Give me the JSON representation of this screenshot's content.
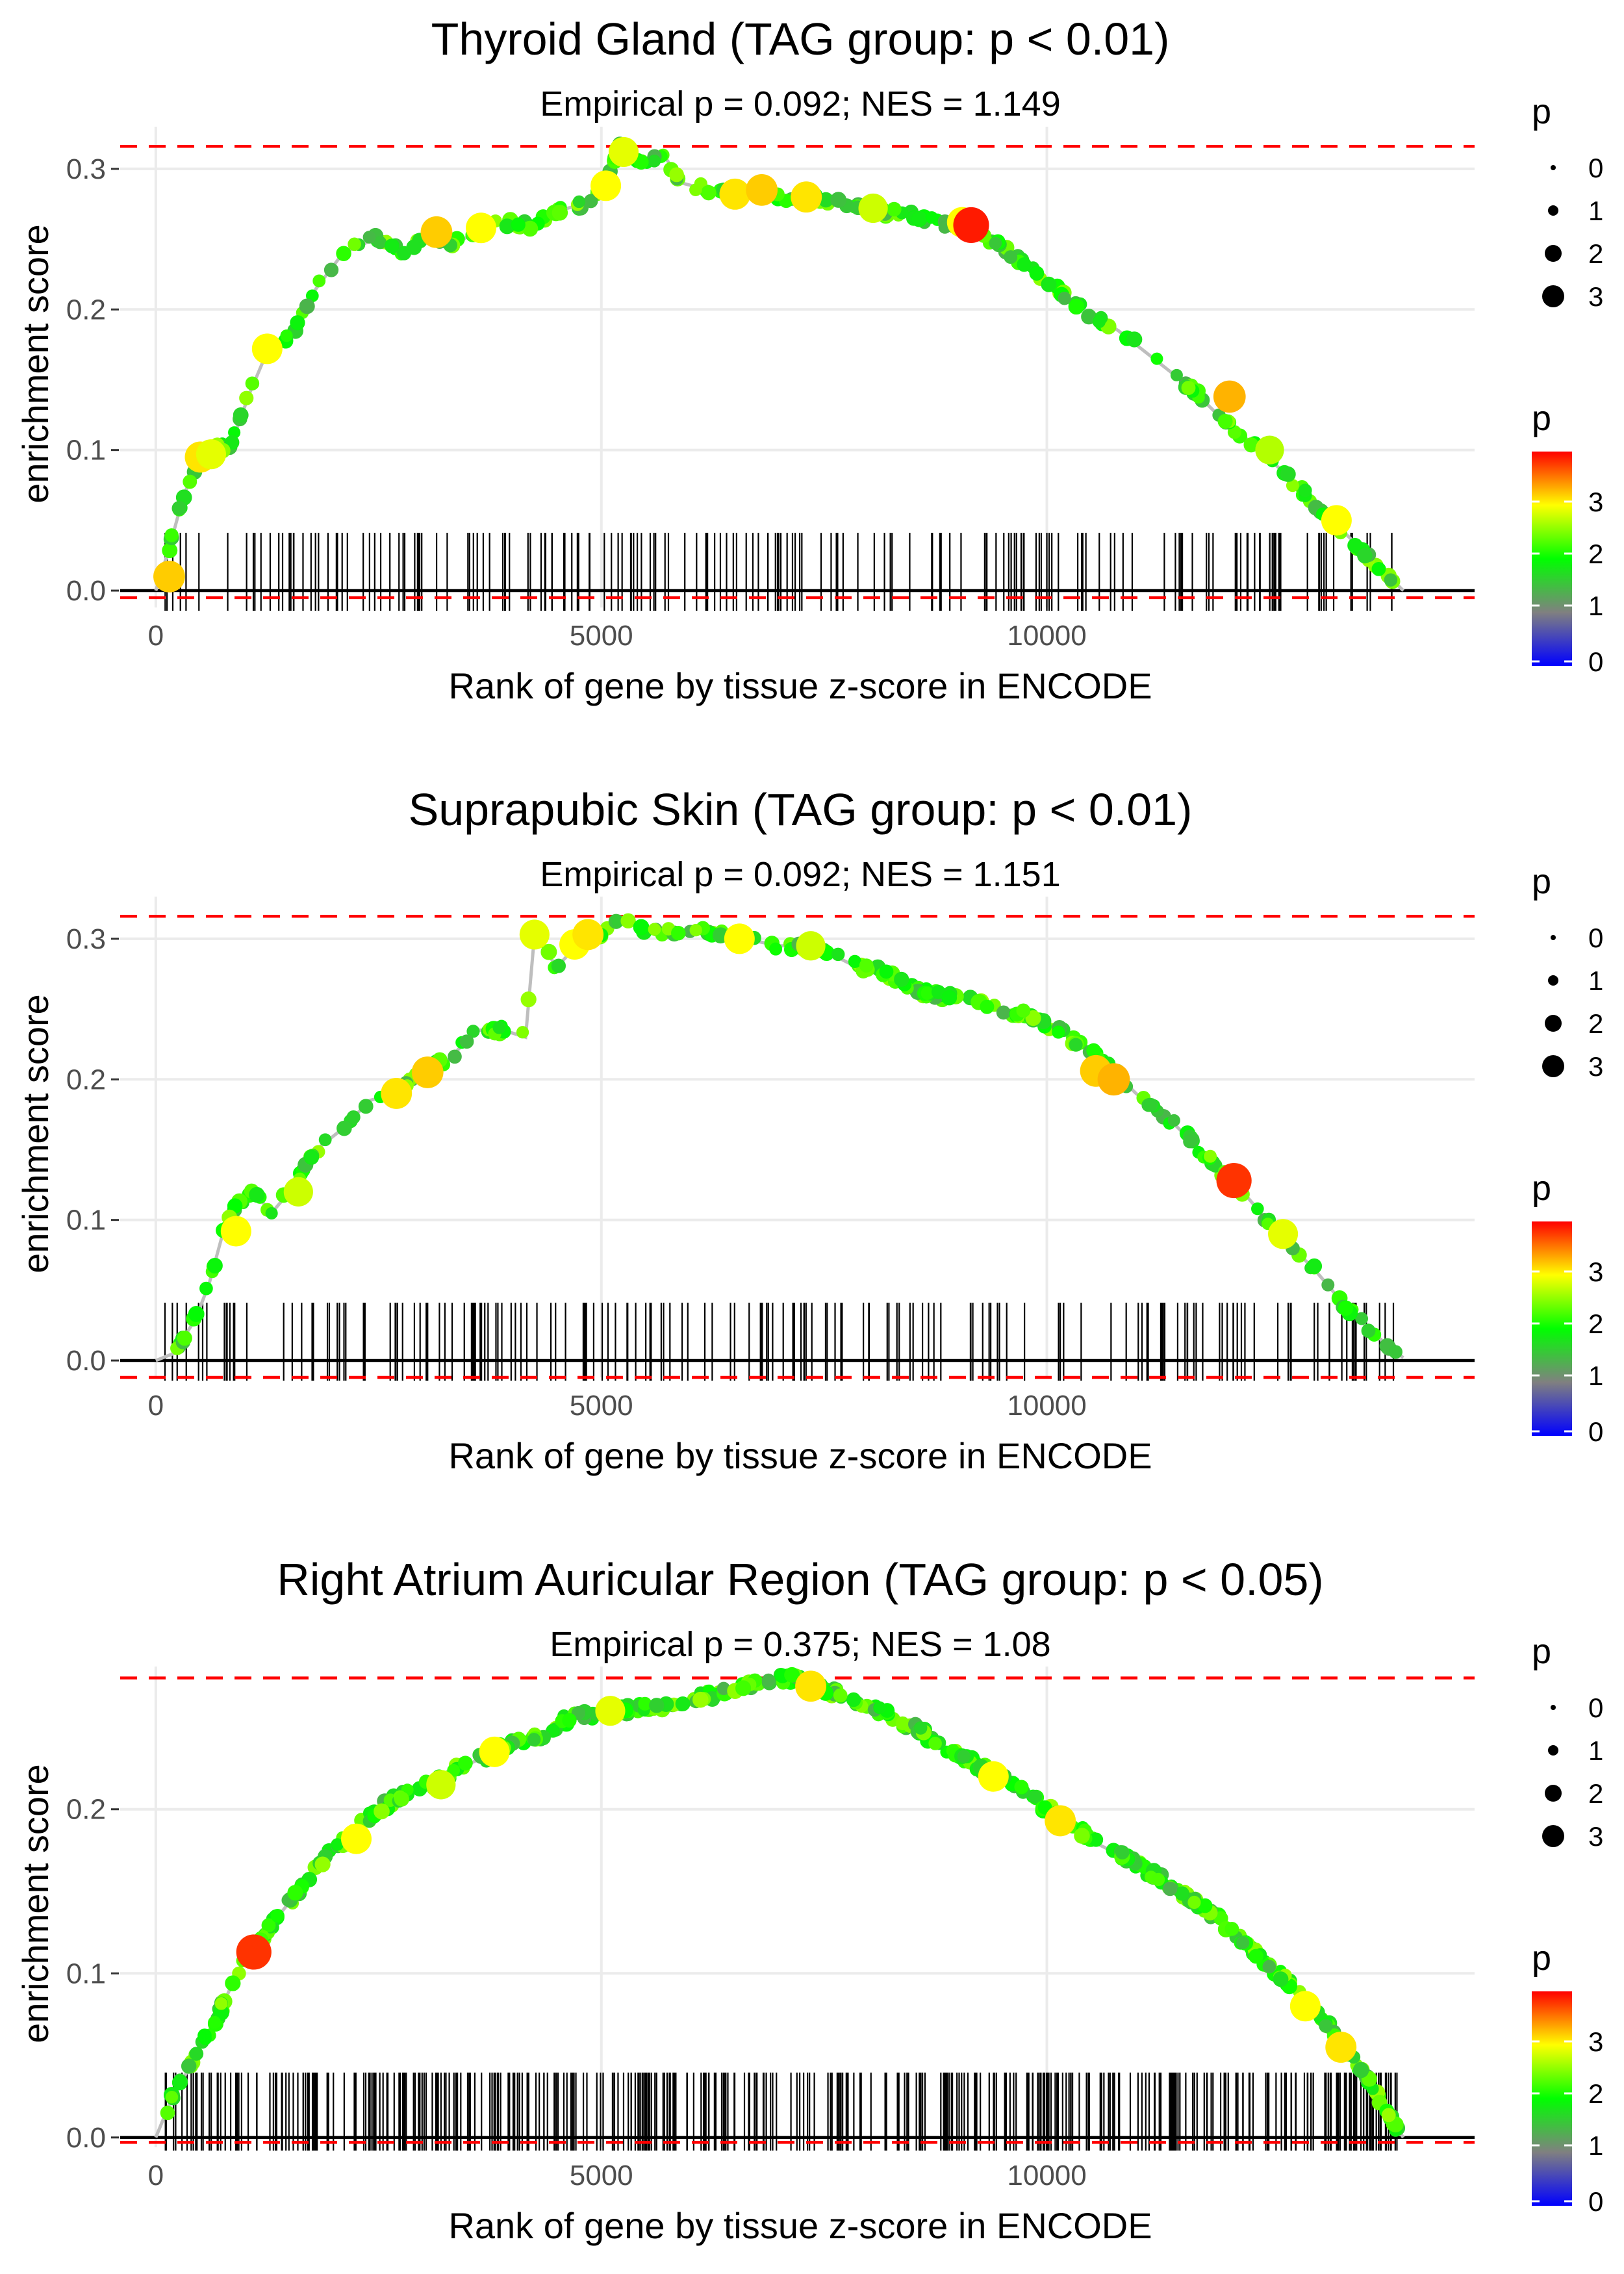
{
  "figure": {
    "x_axis_label": "Rank of gene by tissue z-score in ENCODE",
    "y_axis_label": "enrichment score",
    "size_legend": {
      "title": "p",
      "labels": [
        "0",
        "1",
        "2",
        "3"
      ]
    },
    "color_legend": {
      "title": "p",
      "labels": [
        "0",
        "1",
        "2",
        "3"
      ],
      "gradient": [
        "#0000ff",
        "#808080",
        "#00ff00",
        "#ffff00",
        "#ff0000"
      ]
    },
    "colors": {
      "curve": "#bebebe",
      "threshold_line": "#ff0000",
      "baseline": "#000000",
      "grid": "#ebebeb"
    }
  },
  "chart_data": [
    {
      "type": "line",
      "title": "Thyroid Gland (TAG group: p < 0.01)",
      "subtitle": "Empirical p = 0.092; NES = 1.149",
      "xlabel": "Rank of gene by tissue z-score in ENCODE",
      "ylabel": "enrichment score",
      "xlim": [
        -400,
        14800
      ],
      "ylim": [
        -0.012,
        0.33
      ],
      "x_ticks": [
        0,
        5000,
        10000
      ],
      "x_tick_labels": [
        "0",
        "5000",
        "10000"
      ],
      "y_ticks": [
        0.0,
        0.1,
        0.2,
        0.3
      ],
      "y_tick_labels": [
        "0.0",
        "0.1",
        "0.2",
        "0.3"
      ],
      "max_es": 0.316,
      "min_es": -0.005,
      "running_es": {
        "x": [
          0,
          150,
          300,
          450,
          650,
          850,
          1050,
          1250,
          1500,
          1800,
          2100,
          2450,
          2800,
          3050,
          3300,
          3600,
          3900,
          4200,
          4500,
          4800,
          5050,
          5200,
          5450,
          5700,
          5900,
          6200,
          6500,
          6800,
          7200,
          7600,
          8000,
          8400,
          8800,
          9200,
          9600,
          10000,
          10400,
          10800,
          11200,
          11600,
          12000,
          12400,
          12800,
          13200,
          13600,
          14000
        ],
        "y": [
          0.0,
          0.03,
          0.065,
          0.09,
          0.1,
          0.105,
          0.14,
          0.17,
          0.18,
          0.215,
          0.24,
          0.25,
          0.24,
          0.258,
          0.245,
          0.255,
          0.262,
          0.26,
          0.27,
          0.275,
          0.29,
          0.316,
          0.305,
          0.31,
          0.29,
          0.285,
          0.283,
          0.28,
          0.28,
          0.278,
          0.27,
          0.268,
          0.262,
          0.255,
          0.24,
          0.22,
          0.2,
          0.185,
          0.165,
          0.145,
          0.12,
          0.1,
          0.075,
          0.05,
          0.025,
          0.0
        ]
      },
      "highlighted_genes": [
        {
          "x": 150,
          "es": 0.01,
          "p": 3.2
        },
        {
          "x": 500,
          "es": 0.095,
          "p": 3.1
        },
        {
          "x": 620,
          "es": 0.097,
          "p": 2.9
        },
        {
          "x": 1250,
          "es": 0.172,
          "p": 3.0
        },
        {
          "x": 3150,
          "es": 0.255,
          "p": 3.2
        },
        {
          "x": 3650,
          "es": 0.258,
          "p": 3.0
        },
        {
          "x": 5050,
          "es": 0.288,
          "p": 3.0
        },
        {
          "x": 5250,
          "es": 0.312,
          "p": 2.9
        },
        {
          "x": 6500,
          "es": 0.282,
          "p": 3.1
        },
        {
          "x": 6800,
          "es": 0.285,
          "p": 3.2
        },
        {
          "x": 7300,
          "es": 0.28,
          "p": 3.1
        },
        {
          "x": 8050,
          "es": 0.272,
          "p": 2.8
        },
        {
          "x": 9050,
          "es": 0.262,
          "p": 3.0
        },
        {
          "x": 9150,
          "es": 0.26,
          "p": 3.9
        },
        {
          "x": 12050,
          "es": 0.138,
          "p": 3.3
        },
        {
          "x": 12500,
          "es": 0.1,
          "p": 2.7
        },
        {
          "x": 13250,
          "es": 0.05,
          "p": 3.0
        }
      ]
    },
    {
      "type": "line",
      "title": "Suprapubic Skin (TAG group: p < 0.01)",
      "subtitle": "Empirical p = 0.092; NES = 1.151",
      "xlabel": "Rank of gene by tissue z-score in ENCODE",
      "ylabel": "enrichment score",
      "xlim": [
        -400,
        14800
      ],
      "ylim": [
        -0.012,
        0.33
      ],
      "x_ticks": [
        0,
        5000,
        10000
      ],
      "x_tick_labels": [
        "0",
        "5000",
        "10000"
      ],
      "y_ticks": [
        0.0,
        0.1,
        0.2,
        0.3
      ],
      "y_tick_labels": [
        "0.0",
        "0.1",
        "0.2",
        "0.3"
      ],
      "max_es": 0.316,
      "min_es": -0.012,
      "running_es": {
        "x": [
          0,
          200,
          450,
          600,
          750,
          900,
          1100,
          1300,
          1500,
          1800,
          2100,
          2400,
          2700,
          3000,
          3300,
          3600,
          3900,
          4150,
          4250,
          4500,
          4800,
          5000,
          5200,
          5500,
          5800,
          6200,
          6600,
          7000,
          7400,
          7800,
          8200,
          8600,
          9000,
          9400,
          9800,
          10200,
          10600,
          11000,
          11400,
          11800,
          12200,
          12600,
          13000,
          13400,
          13800,
          14000
        ],
        "y": [
          0.0,
          0.005,
          0.03,
          0.055,
          0.09,
          0.11,
          0.12,
          0.105,
          0.12,
          0.15,
          0.165,
          0.185,
          0.19,
          0.205,
          0.215,
          0.235,
          0.235,
          0.23,
          0.303,
          0.28,
          0.3,
          0.305,
          0.316,
          0.305,
          0.305,
          0.305,
          0.3,
          0.295,
          0.295,
          0.282,
          0.275,
          0.262,
          0.258,
          0.252,
          0.245,
          0.232,
          0.215,
          0.19,
          0.17,
          0.145,
          0.12,
          0.09,
          0.065,
          0.035,
          0.012,
          0.002
        ]
      },
      "highlighted_genes": [
        {
          "x": 900,
          "es": 0.092,
          "p": 3.0
        },
        {
          "x": 1600,
          "es": 0.12,
          "p": 2.8
        },
        {
          "x": 2700,
          "es": 0.19,
          "p": 3.1
        },
        {
          "x": 3050,
          "es": 0.205,
          "p": 3.2
        },
        {
          "x": 4250,
          "es": 0.303,
          "p": 2.9
        },
        {
          "x": 4700,
          "es": 0.296,
          "p": 3.0
        },
        {
          "x": 4850,
          "es": 0.303,
          "p": 3.1
        },
        {
          "x": 6550,
          "es": 0.3,
          "p": 3.0
        },
        {
          "x": 7350,
          "es": 0.295,
          "p": 2.8
        },
        {
          "x": 10550,
          "es": 0.206,
          "p": 3.2
        },
        {
          "x": 10750,
          "es": 0.2,
          "p": 3.3
        },
        {
          "x": 12100,
          "es": 0.128,
          "p": 3.8
        },
        {
          "x": 12650,
          "es": 0.09,
          "p": 2.9
        }
      ]
    },
    {
      "type": "line",
      "title": "Right Atrium Auricular Region (TAG group: p < 0.05)",
      "subtitle": "Empirical p = 0.375; NES = 1.08",
      "xlabel": "Rank of gene by tissue z-score in ENCODE",
      "ylabel": "enrichment score",
      "xlim": [
        -400,
        14800
      ],
      "ylim": [
        -0.006,
        0.287
      ],
      "x_ticks": [
        0,
        5000,
        10000
      ],
      "x_tick_labels": [
        "0",
        "5000",
        "10000"
      ],
      "y_ticks": [
        0.0,
        0.1,
        0.2
      ],
      "y_tick_labels": [
        "0.0",
        "0.1",
        "0.2"
      ],
      "max_es": 0.28,
      "min_es": -0.003,
      "running_es": {
        "x": [
          0,
          150,
          400,
          700,
          1000,
          1300,
          1600,
          1900,
          2200,
          2500,
          2800,
          3100,
          3400,
          3700,
          4000,
          4300,
          4600,
          4900,
          5200,
          5500,
          5800,
          6100,
          6400,
          6700,
          7000,
          7300,
          7600,
          7900,
          8200,
          8500,
          8800,
          9100,
          9400,
          9700,
          10000,
          10300,
          10600,
          10900,
          11200,
          11500,
          11800,
          12100,
          12400,
          12700,
          13000,
          13300,
          13600,
          13850,
          14000
        ],
        "y": [
          0.0,
          0.02,
          0.045,
          0.075,
          0.11,
          0.13,
          0.15,
          0.17,
          0.185,
          0.2,
          0.21,
          0.215,
          0.225,
          0.232,
          0.24,
          0.245,
          0.255,
          0.258,
          0.26,
          0.262,
          0.265,
          0.268,
          0.272,
          0.276,
          0.28,
          0.278,
          0.272,
          0.265,
          0.258,
          0.25,
          0.24,
          0.23,
          0.222,
          0.212,
          0.2,
          0.19,
          0.178,
          0.17,
          0.16,
          0.15,
          0.138,
          0.125,
          0.11,
          0.095,
          0.078,
          0.058,
          0.035,
          0.012,
          0.0
        ]
      },
      "highlighted_genes": [
        {
          "x": 1100,
          "es": 0.113,
          "p": 3.8
        },
        {
          "x": 2250,
          "es": 0.182,
          "p": 3.0
        },
        {
          "x": 3200,
          "es": 0.215,
          "p": 2.8
        },
        {
          "x": 3800,
          "es": 0.235,
          "p": 3.0
        },
        {
          "x": 5100,
          "es": 0.26,
          "p": 2.9
        },
        {
          "x": 7350,
          "es": 0.275,
          "p": 3.1
        },
        {
          "x": 9400,
          "es": 0.22,
          "p": 3.0
        },
        {
          "x": 10150,
          "es": 0.193,
          "p": 3.1
        },
        {
          "x": 12900,
          "es": 0.08,
          "p": 3.0
        },
        {
          "x": 13300,
          "es": 0.055,
          "p": 3.1
        }
      ]
    }
  ]
}
